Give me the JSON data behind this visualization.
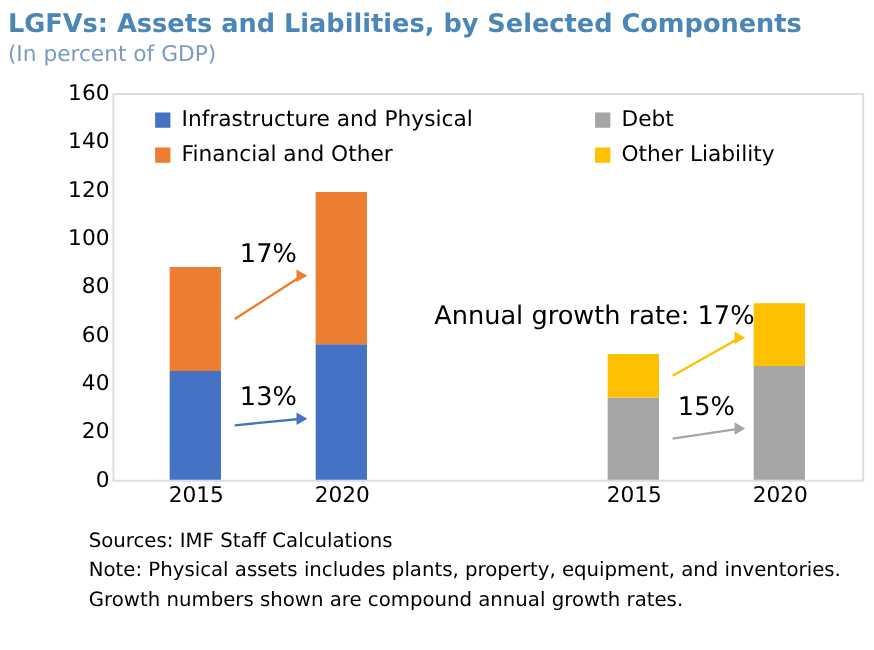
{
  "chart_data": {
    "type": "bar",
    "stacked": true,
    "title": "LGFVs: Assets and Liabilities, by Selected Components",
    "subtitle": "(In percent of GDP)",
    "categories": [
      "2015",
      "2020",
      null,
      "2015",
      "2020"
    ],
    "series": [
      {
        "name": "Infrastructure and Physical",
        "color": "#4472c4",
        "values": [
          45,
          56,
          null,
          null,
          null
        ]
      },
      {
        "name": "Financial and Other",
        "color": "#ed7d31",
        "values": [
          43,
          63,
          null,
          null,
          null
        ]
      },
      {
        "name": "Debt",
        "color": "#a5a5a5",
        "values": [
          null,
          null,
          null,
          34,
          47
        ]
      },
      {
        "name": "Other Liability",
        "color": "#ffc000",
        "values": [
          null,
          null,
          null,
          18,
          26
        ]
      }
    ],
    "ylim": [
      0,
      160
    ],
    "yticks": [
      0,
      20,
      40,
      60,
      80,
      100,
      120,
      140,
      160
    ],
    "grid": false,
    "legend": "top",
    "annotations": [
      "13%",
      "17%",
      "15%",
      "Annual growth rate:  17%",
      "Sources: IMF Staff Calculations",
      "Note: Physical assets includes plants, property, equipment, and inventories.",
      "Growth numbers shown are compound annual growth rates."
    ]
  }
}
